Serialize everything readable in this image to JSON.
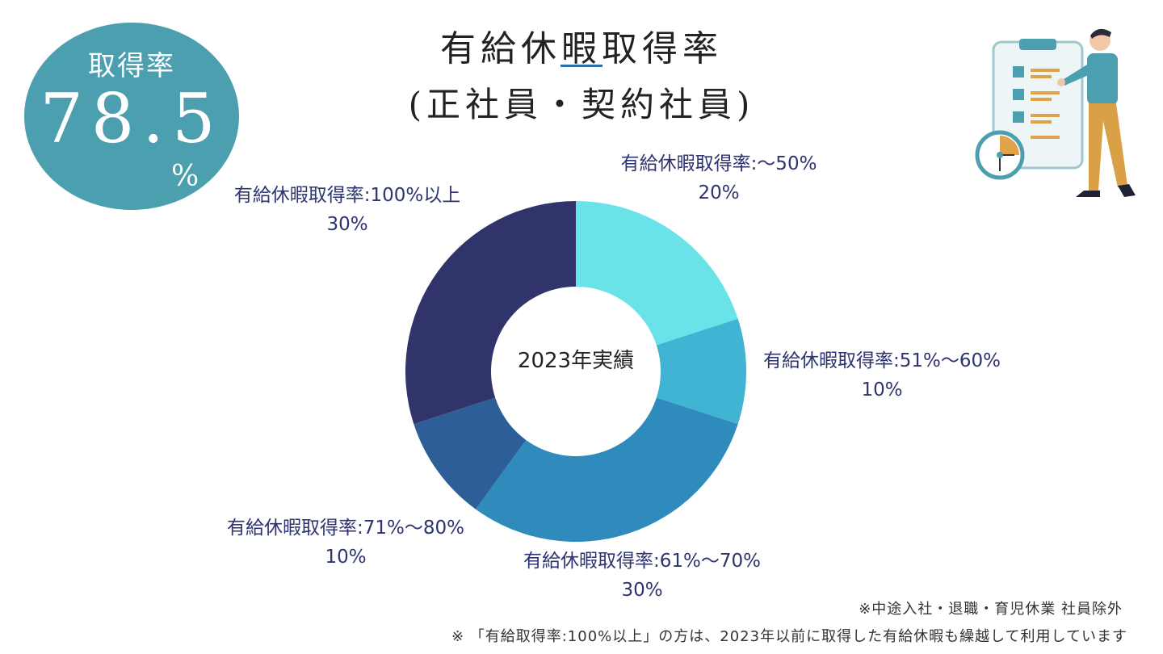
{
  "rate_badge": {
    "label": "取得率",
    "value": "78.5",
    "unit": "%",
    "color": "#4b9fae"
  },
  "title": "有給休暇取得率",
  "subtitle": "(正社員・契約社員)",
  "chart_data": {
    "type": "pie",
    "center_label": "2023年実績",
    "slices": [
      {
        "label": "有給休暇取得率:〜50%",
        "percent_label": "20%",
        "value": 20,
        "color": "#6ae3e8"
      },
      {
        "label": "有給休暇取得率:51%〜60%",
        "percent_label": "10%",
        "value": 10,
        "color": "#41b3d3"
      },
      {
        "label": "有給休暇取得率:61%〜70%",
        "percent_label": "30%",
        "value": 30,
        "color": "#2e8bbb"
      },
      {
        "label": "有給休暇取得率:71%〜80%",
        "percent_label": "10%",
        "value": 10,
        "color": "#2d5e97"
      },
      {
        "label": "有給休暇取得率:100%以上",
        "percent_label": "30%",
        "value": 30,
        "color": "#31336b"
      }
    ]
  },
  "notes": {
    "note1": "※中途入社・退職・育児休業 社員除外",
    "note2": "※ 「有給取得率:100%以上」の方は、2023年以前に取得した有給休暇も繰越して利用しています"
  },
  "illustration": {
    "icon": "person-with-checklist-and-clock-illustration"
  }
}
